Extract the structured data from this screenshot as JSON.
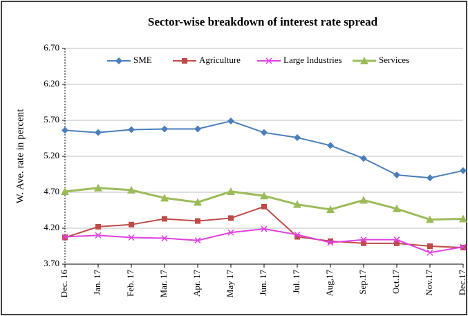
{
  "chart_data": {
    "type": "line",
    "title": "Sector-wise breakdown of interest rate spread",
    "y_label": "W. Ave. rate in percent",
    "categories": [
      "Dec. 16",
      "Jan. 17",
      "Feb. 17",
      "Mar. 17",
      "Apr. 17",
      "May 17",
      "Jun. 17",
      "Jul. 17",
      "Aug,17",
      "Sep.17",
      "Oct.17",
      "Nov.17",
      "Dec.17"
    ],
    "series": [
      {
        "name": "SME",
        "color": "#4a7ebb",
        "marker": "diamond",
        "values": [
          5.56,
          5.53,
          5.57,
          5.58,
          5.58,
          5.69,
          5.53,
          5.46,
          5.35,
          5.17,
          4.94,
          4.9,
          5.0
        ]
      },
      {
        "name": "Agriculture",
        "color": "#be4b48",
        "marker": "square",
        "values": [
          4.07,
          4.22,
          4.25,
          4.33,
          4.3,
          4.34,
          4.5,
          4.08,
          4.02,
          3.99,
          3.99,
          3.95,
          3.93
        ]
      },
      {
        "name": "Large Industries",
        "color": "#e040e0",
        "marker": "x",
        "values": [
          4.08,
          4.1,
          4.07,
          4.06,
          4.03,
          4.14,
          4.19,
          4.11,
          4.0,
          4.04,
          4.04,
          3.86,
          3.94
        ]
      },
      {
        "name": "Services",
        "color": "#9bbb59",
        "marker": "triangle",
        "values": [
          4.71,
          4.76,
          4.73,
          4.62,
          4.56,
          4.71,
          4.65,
          4.53,
          4.46,
          4.59,
          4.47,
          4.32,
          4.33
        ]
      }
    ],
    "ylim": [
      3.7,
      6.7
    ],
    "yticks": [
      {
        "value": 3.7,
        "label": "3.70"
      },
      {
        "value": 4.2,
        "label": "4.20"
      },
      {
        "value": 4.7,
        "label": "4.70"
      },
      {
        "value": 5.2,
        "label": "5.20"
      },
      {
        "value": 5.7,
        "label": "5.70"
      },
      {
        "value": 6.2,
        "label": "6.20"
      },
      {
        "value": 6.7,
        "label": "6.70"
      }
    ],
    "grid": true,
    "legend": "top"
  }
}
